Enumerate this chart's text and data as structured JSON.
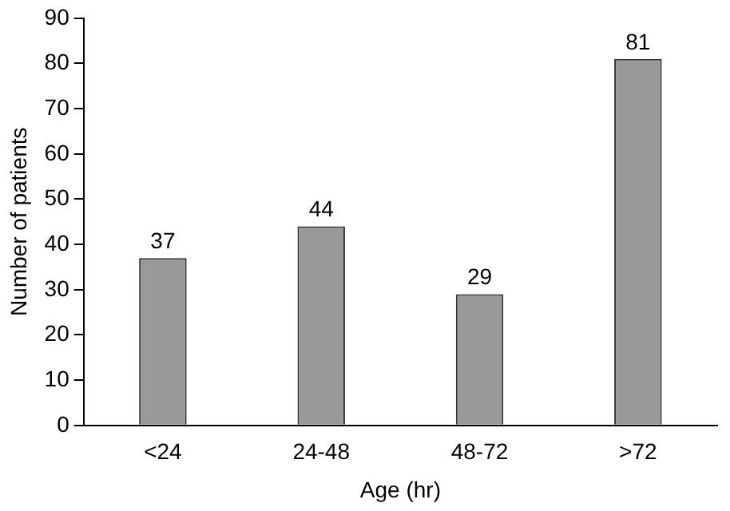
{
  "chart_data": {
    "type": "bar",
    "xlabel": "Age (hr)",
    "ylabel": "Number of patients",
    "categories": [
      "<24",
      "24-48",
      "48-72",
      ">72"
    ],
    "values": [
      37,
      44,
      29,
      81
    ],
    "color": "#999999",
    "ylim": [
      0,
      90
    ],
    "yticks": [
      0,
      10,
      20,
      30,
      40,
      50,
      60,
      70,
      80,
      90
    ],
    "grid": false,
    "data_labels": true
  }
}
